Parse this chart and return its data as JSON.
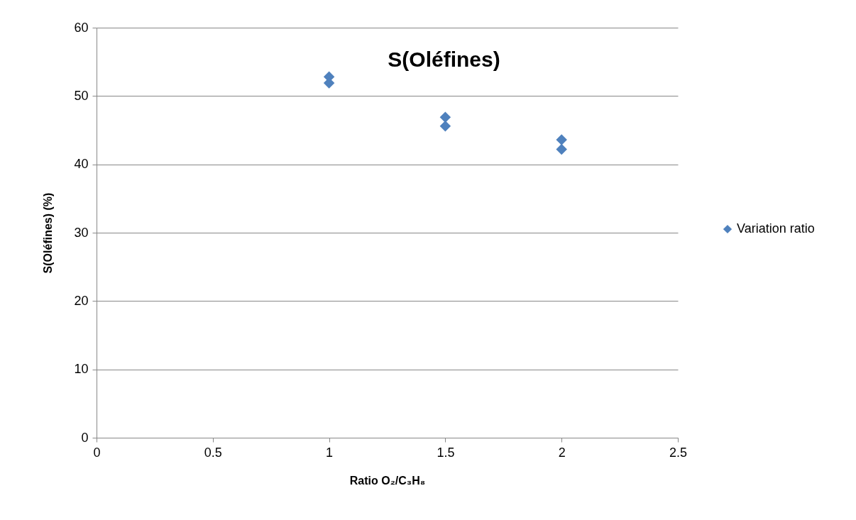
{
  "chart_data": {
    "type": "scatter",
    "title": "S(Oléfines)",
    "xlabel": "Ratio O₂/C₃H₈",
    "ylabel": "S(Oléfines) (%)",
    "xlim": [
      0,
      2.5
    ],
    "xticks": [
      0,
      0.5,
      1,
      1.5,
      2,
      2.5
    ],
    "ylim": [
      0,
      60
    ],
    "yticks": [
      0,
      10,
      20,
      30,
      40,
      50,
      60
    ],
    "grid": "y",
    "legend": "right",
    "marker": "diamond",
    "series": [
      {
        "name": "Variation ratio",
        "color": "#4f81bd",
        "x": [
          1,
          1,
          1.5,
          1.5,
          2,
          2
        ],
        "values": [
          52.8,
          51.9,
          46.9,
          45.6,
          43.6,
          42.2
        ]
      }
    ]
  }
}
